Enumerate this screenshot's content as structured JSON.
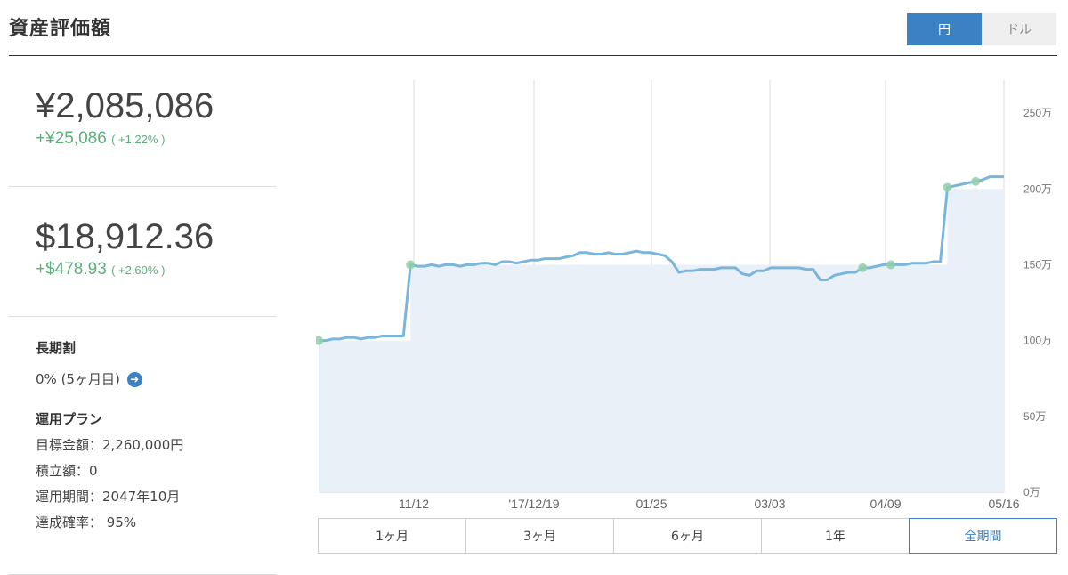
{
  "header": {
    "title": "資産評価額",
    "currency_toggle": [
      "円",
      "ドル"
    ],
    "currency_selected": "円"
  },
  "summary": {
    "jpy_value": "¥2,085,086",
    "jpy_change": "+¥25,086",
    "jpy_change_pct": "( +1.22% )",
    "usd_value": "$18,912.36",
    "usd_change": "+$478.93",
    "usd_change_pct": "( +2.60% )"
  },
  "discount": {
    "label": "長期割",
    "value": "0% (5ヶ月目)"
  },
  "plan": {
    "label": "運用プラン",
    "target": "目標金額：2,260,000円",
    "monthly": "積立額：0",
    "period": "運用期間：2047年10月",
    "probability": "達成確率： 95%"
  },
  "periods": {
    "items": [
      "1ヶ月",
      "3ヶ月",
      "6ヶ月",
      "1年",
      "全期間"
    ],
    "selected": "全期間"
  },
  "colors": {
    "accent": "#3a82c4",
    "positive": "#5bb07a",
    "line": "#7ab6dc",
    "area": "#e9f0f8"
  },
  "chart_data": {
    "type": "area",
    "x_ticks": [
      "11/12",
      "'17/12/19",
      "01/25",
      "03/03",
      "04/09",
      "05/16"
    ],
    "y_ticks": [
      "0万",
      "50万",
      "100万",
      "150万",
      "200万",
      "250万"
    ],
    "ylim": [
      0,
      270
    ],
    "ylabel_unit": "万",
    "grid": true,
    "series": [
      {
        "values": [
          100,
          100,
          101,
          101,
          102,
          102,
          101,
          102,
          102,
          103,
          103,
          103,
          103,
          150,
          149,
          149,
          150,
          149,
          150,
          150,
          149,
          150,
          150,
          151,
          151,
          150,
          152,
          152,
          151,
          152,
          153,
          153,
          154,
          154,
          154,
          155,
          156,
          158,
          158,
          157,
          157,
          158,
          157,
          157,
          158,
          159,
          158,
          158,
          157,
          156,
          152,
          145,
          146,
          146,
          147,
          147,
          147,
          148,
          148,
          148,
          144,
          143,
          146,
          146,
          148,
          148,
          148,
          148,
          148,
          147,
          147,
          140,
          140,
          143,
          144,
          145,
          145,
          148,
          148,
          149,
          150,
          150,
          150,
          150,
          151,
          151,
          151,
          152,
          152,
          201,
          202,
          203,
          204,
          205,
          206,
          208,
          208,
          208
        ]
      }
    ],
    "deposit_steps": [
      {
        "from": 0,
        "to": 12,
        "value": 100
      },
      {
        "from": 13,
        "to": 88,
        "value": 150
      },
      {
        "from": 89,
        "to": 97,
        "value": 200
      }
    ],
    "markers": [
      0,
      13,
      77,
      81,
      89,
      93
    ]
  }
}
